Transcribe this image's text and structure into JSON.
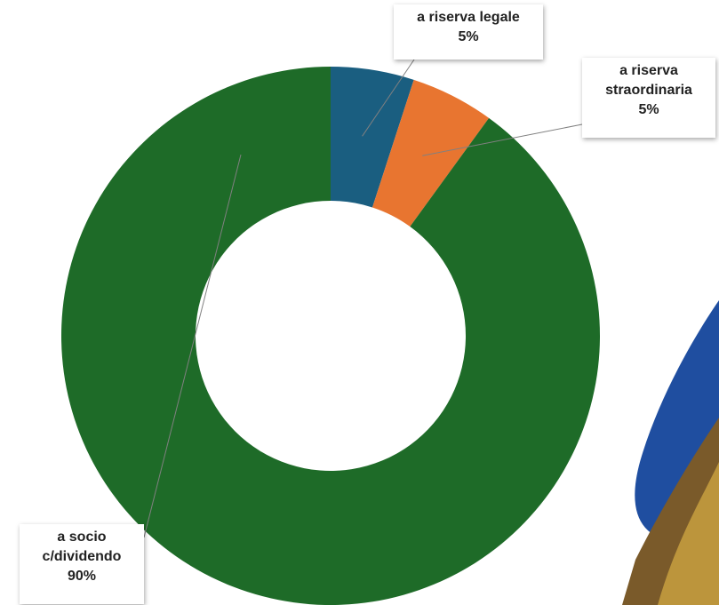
{
  "chart_data": {
    "type": "pie",
    "subtype": "donut",
    "categories": [
      "a riserva legale",
      "a riserva straordinaria",
      "a socio c/dividendo"
    ],
    "values": [
      5,
      5,
      90
    ],
    "value_labels": [
      "5%",
      "5%",
      "90%"
    ],
    "colors": [
      "#1a5e80",
      "#e87530",
      "#1e6b28"
    ],
    "start_angle_deg": 0,
    "direction": "clockwise",
    "legend": "none",
    "data_labels": "callouts"
  },
  "labels": {
    "slice0": {
      "name_lines": [
        "a riserva legale"
      ],
      "value": "5%"
    },
    "slice1": {
      "name_lines": [
        "a riserva",
        "straordinaria"
      ],
      "value": "5%"
    },
    "slice2": {
      "name_lines": [
        "a socio",
        "c/dividendo"
      ],
      "value": "90%"
    }
  },
  "decoration": {
    "icon": "partial-decorative-graphic-icon",
    "colors": [
      "#1f4ea0",
      "#c8a040",
      "#5a3a1a"
    ]
  }
}
